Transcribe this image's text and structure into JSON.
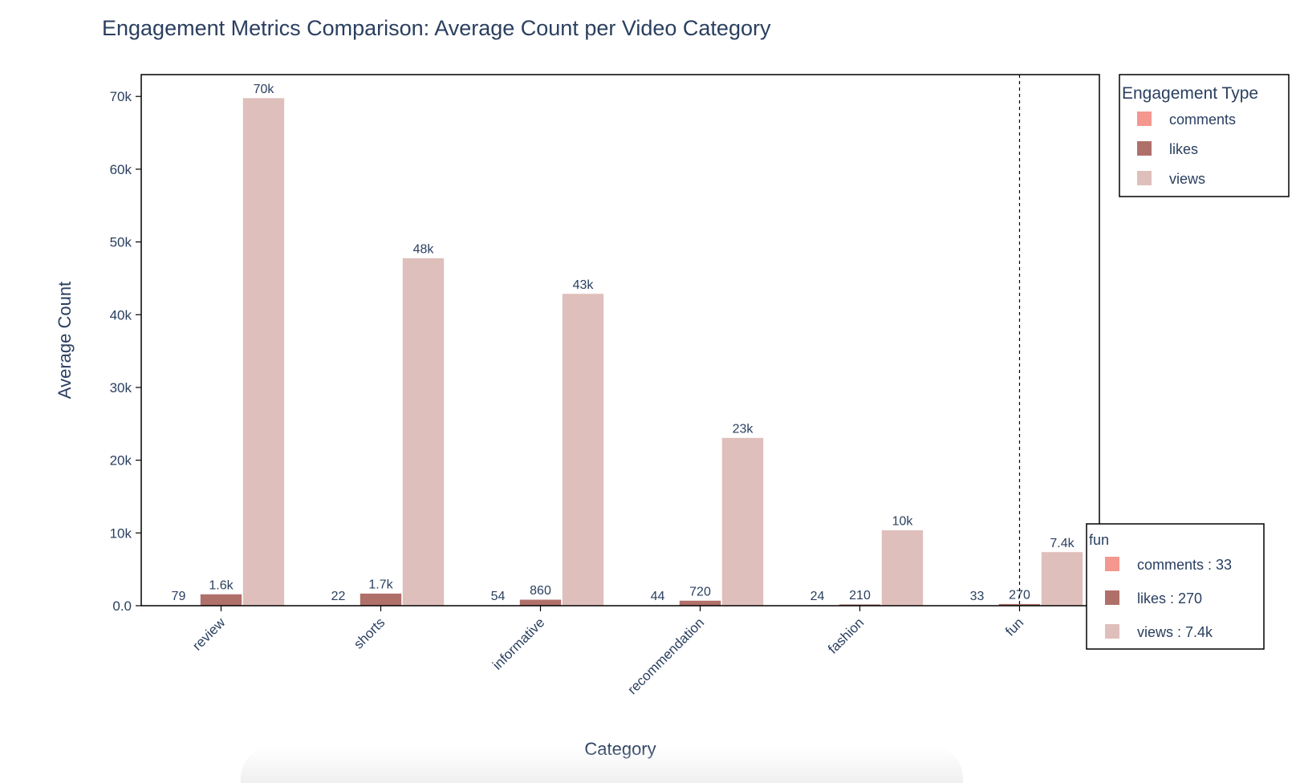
{
  "chart_data": {
    "type": "bar",
    "title": "Engagement Metrics Comparison: Average Count per Video Category",
    "xlabel": "Category",
    "ylabel": "Average Count",
    "categories": [
      "review",
      "shorts",
      "informative",
      "recommendation",
      "fashion",
      "fun"
    ],
    "ylim": [
      0,
      73000
    ],
    "yticks": [
      0,
      10000,
      20000,
      30000,
      40000,
      50000,
      60000,
      70000
    ],
    "ytick_labels": [
      "0.0",
      "10k",
      "20k",
      "30k",
      "40k",
      "50k",
      "60k",
      "70k"
    ],
    "series": [
      {
        "name": "comments",
        "color": "#f4978e",
        "values": [
          79,
          22,
          54,
          44,
          24,
          33
        ],
        "labels": [
          "79",
          "22",
          "54",
          "44",
          "24",
          "33"
        ]
      },
      {
        "name": "likes",
        "color": "#b0706a",
        "values": [
          1600,
          1700,
          860,
          720,
          210,
          270
        ],
        "labels": [
          "1.6k",
          "1.7k",
          "860",
          "720",
          "210",
          "270"
        ]
      },
      {
        "name": "views",
        "color": "#dfbfbb",
        "values": [
          69800,
          47800,
          42900,
          23100,
          10400,
          7400
        ],
        "labels": [
          "70k",
          "48k",
          "43k",
          "23k",
          "10k",
          "7.4k"
        ]
      }
    ],
    "legend": {
      "title": "Engagement Type",
      "position": "top-right"
    },
    "hover": {
      "category": "fun",
      "title": "fun",
      "items": [
        "comments : 33",
        "likes : 270",
        "views : 7.4k"
      ]
    }
  }
}
